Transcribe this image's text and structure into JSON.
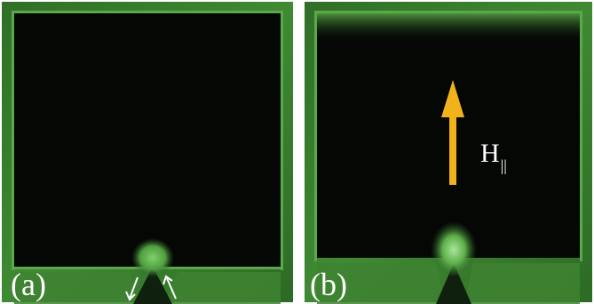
{
  "panels": [
    {
      "label": "(a)"
    },
    {
      "label": "(b)",
      "field_symbol": "H",
      "field_subscript": "||"
    }
  ],
  "colors": {
    "border_green": "#3f8a33",
    "edge_green": "#5aa84a",
    "interior": "#050705",
    "arrow_yellow": "#f2b21c",
    "text": "#ffffff",
    "background": "#ffffff"
  },
  "icons": [
    "arrow-up-icon",
    "arrow-small-icon"
  ]
}
